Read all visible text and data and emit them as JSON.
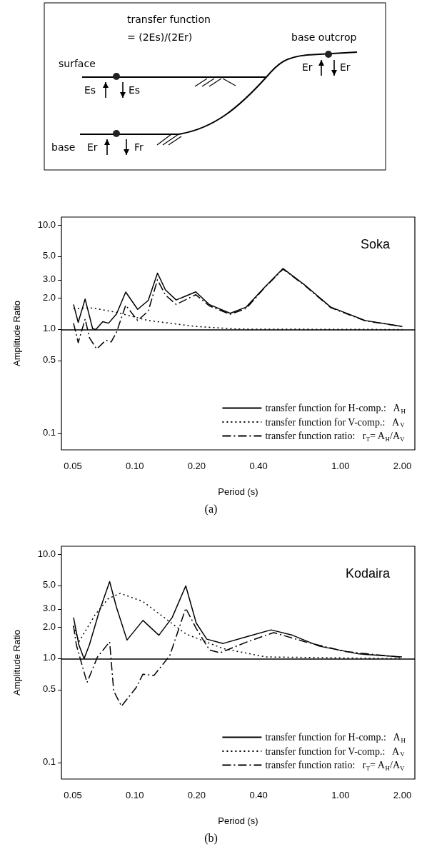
{
  "chart_data": [
    {
      "type": "other",
      "annotations": [
        "transfer function",
        "= (2Es)/(2Er)",
        "base outcrop",
        "surface",
        "Es",
        "Es",
        "base",
        "Er",
        "Fr",
        "Er",
        "Er"
      ]
    },
    {
      "type": "line",
      "title": "Soka",
      "xlabel": "Period (s)",
      "ylabel": "Amplitude Ratio",
      "annotations": [
        "(a)"
      ],
      "log": "xy",
      "grid": false,
      "legend": "bottom right",
      "marker": "none",
      "xlim": [
        0.044,
        2.3
      ],
      "xticks": [
        0.05,
        {
          "value": 0.1,
          "label": "0.10"
        },
        {
          "value": 0.2,
          "label": "0.20"
        },
        {
          "value": 0.4,
          "label": "0.40"
        },
        {
          "value": 1,
          "label": "1.00"
        },
        {
          "value": 2,
          "label": "2.00"
        }
      ],
      "ylim": [
        0.07,
        12
      ],
      "yticks": [
        {
          "value": 0.1,
          "label": "0.1"
        },
        {
          "value": 0.5,
          "label": "0.5"
        },
        {
          "value": 1,
          "label": "1.0"
        },
        {
          "value": 2,
          "label": "2.0"
        },
        {
          "value": 3,
          "label": "3.0"
        },
        {
          "value": 5,
          "label": "5.0"
        },
        {
          "value": 10,
          "label": "10.0"
        }
      ],
      "ref_lines": [
        {
          "axis": "y",
          "value": 1,
          "color": "#000000",
          "line_style": "solid"
        }
      ],
      "series": [
        {
          "name": "transfer function for H-comp.:   A$_{H}$",
          "color": "#000000",
          "line_style": "solid",
          "x": [
            0.0504,
            0.0531,
            0.0574,
            0.0624,
            0.0647,
            0.0699,
            0.0746,
            0.0815,
            0.0904,
            0.1033,
            0.1163,
            0.129,
            0.141,
            0.159,
            0.198,
            0.23,
            0.291,
            0.348,
            0.428,
            0.526,
            0.667,
            0.897,
            1.32,
            2.0
          ],
          "values": [
            1.74,
            1.17,
            1.96,
            1.02,
            1.0,
            1.19,
            1.15,
            1.41,
            2.29,
            1.56,
            1.9,
            3.48,
            2.4,
            1.92,
            2.3,
            1.74,
            1.43,
            1.64,
            2.55,
            3.85,
            2.7,
            1.64,
            1.22,
            1.07
          ]
        },
        {
          "name": "transfer function for V-comp.:   A$_{V}$",
          "color": "#000000",
          "line_style": "dotted",
          "x": [
            0.0504,
            0.0624,
            0.0815,
            0.116,
            0.198,
            0.318,
            2.0
          ],
          "values": [
            1.59,
            1.61,
            1.46,
            1.22,
            1.07,
            1.01,
            1.0
          ]
        },
        {
          "name": "transfer function ratio:   r$_{T}$= A$_{H}$/A$_{V}$",
          "color": "#000000",
          "line_style": "dashed",
          "x": [
            0.0504,
            0.0531,
            0.0574,
            0.0603,
            0.0653,
            0.0724,
            0.0768,
            0.0815,
            0.0904,
            0.1033,
            0.1163,
            0.129,
            0.141,
            0.159,
            0.198,
            0.23,
            0.291,
            0.348,
            0.428,
            0.526,
            0.667,
            0.897,
            1.32,
            2.0
          ],
          "values": [
            1.15,
            0.75,
            1.26,
            0.83,
            0.65,
            0.79,
            0.76,
            0.94,
            1.71,
            1.22,
            1.5,
            3.0,
            2.14,
            1.74,
            2.16,
            1.69,
            1.4,
            1.59,
            2.52,
            3.8,
            2.67,
            1.62,
            1.21,
            1.07
          ]
        }
      ]
    },
    {
      "type": "line",
      "title": "Kodaira",
      "xlabel": "Period (s)",
      "ylabel": "Amplitude Ratio",
      "annotations": [
        "(b)"
      ],
      "log": "xy",
      "grid": false,
      "legend": "bottom right",
      "marker": "none",
      "xlim": [
        0.044,
        2.3
      ],
      "xticks": [
        0.05,
        {
          "value": 0.1,
          "label": "0.10"
        },
        {
          "value": 0.2,
          "label": "0.20"
        },
        {
          "value": 0.4,
          "label": "0.40"
        },
        {
          "value": 1,
          "label": "1.00"
        },
        {
          "value": 2,
          "label": "2.00"
        }
      ],
      "ylim": [
        0.07,
        12
      ],
      "yticks": [
        {
          "value": 0.1,
          "label": "0.1"
        },
        {
          "value": 0.5,
          "label": "0.5"
        },
        {
          "value": 1,
          "label": "1.0"
        },
        {
          "value": 2,
          "label": "2.0"
        },
        {
          "value": 3,
          "label": "3.0"
        },
        {
          "value": 5,
          "label": "5.0"
        },
        {
          "value": 10,
          "label": "10.0"
        }
      ],
      "ref_lines": [
        {
          "axis": "y",
          "value": 1,
          "color": "#000000",
          "line_style": "solid"
        }
      ],
      "series": [
        {
          "name": "transfer function for H-comp.:   A$_{H}$",
          "color": "#000000",
          "line_style": "solid",
          "x": [
            0.0504,
            0.0535,
            0.0567,
            0.0602,
            0.067,
            0.0755,
            0.0814,
            0.0917,
            0.1096,
            0.131,
            0.152,
            0.177,
            0.199,
            0.224,
            0.269,
            0.352,
            0.46,
            0.584,
            0.787,
            1.23,
            1.99
          ],
          "values": [
            2.48,
            1.36,
            1.0,
            1.36,
            2.79,
            5.5,
            3.14,
            1.51,
            2.33,
            1.68,
            2.48,
            5.0,
            2.2,
            1.54,
            1.4,
            1.63,
            1.89,
            1.68,
            1.32,
            1.11,
            1.04
          ]
        },
        {
          "name": "transfer function for V-comp.:   A$_{V}$",
          "color": "#000000",
          "line_style": "dotted",
          "x": [
            0.0504,
            0.0535,
            0.0641,
            0.0742,
            0.0851,
            0.1096,
            0.139,
            0.177,
            0.269,
            0.433,
            1.99
          ],
          "values": [
            2.07,
            1.45,
            2.63,
            3.76,
            4.24,
            3.54,
            2.48,
            1.73,
            1.25,
            1.04,
            1.0
          ]
        },
        {
          "name": "transfer function ratio:   r$_{T}$= A$_{H}$/A$_{V}$",
          "color": "#000000",
          "line_style": "dashed",
          "x": [
            0.0504,
            0.052,
            0.0586,
            0.0659,
            0.0755,
            0.079,
            0.0862,
            0.1017,
            0.1096,
            0.124,
            0.148,
            0.177,
            0.199,
            0.231,
            0.26,
            0.352,
            0.474,
            0.676,
            1.06,
            1.99
          ],
          "values": [
            2.07,
            1.36,
            0.59,
            1.04,
            1.45,
            0.49,
            0.35,
            0.53,
            0.71,
            0.69,
            1.07,
            3.05,
            1.95,
            1.21,
            1.14,
            1.45,
            1.78,
            1.45,
            1.17,
            1.03
          ]
        }
      ]
    }
  ]
}
